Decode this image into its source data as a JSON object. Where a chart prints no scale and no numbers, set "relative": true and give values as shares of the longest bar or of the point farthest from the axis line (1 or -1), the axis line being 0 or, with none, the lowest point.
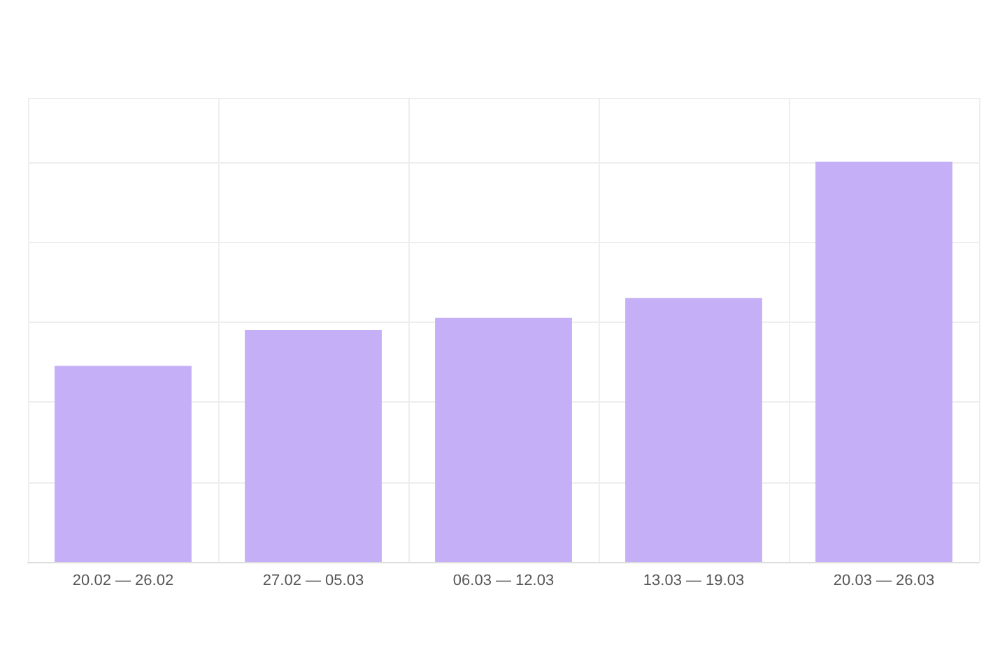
{
  "chart_data": {
    "type": "bar",
    "relative": true,
    "categories": [
      "20.02 — 26.02",
      "27.02 — 05.03",
      "06.03 — 12.03",
      "13.03 — 19.03",
      "20.03 — 26.03"
    ],
    "values": [
      0.49,
      0.58,
      0.61,
      0.66,
      1
    ],
    "color": "#c5b0f8",
    "grid": true
  }
}
